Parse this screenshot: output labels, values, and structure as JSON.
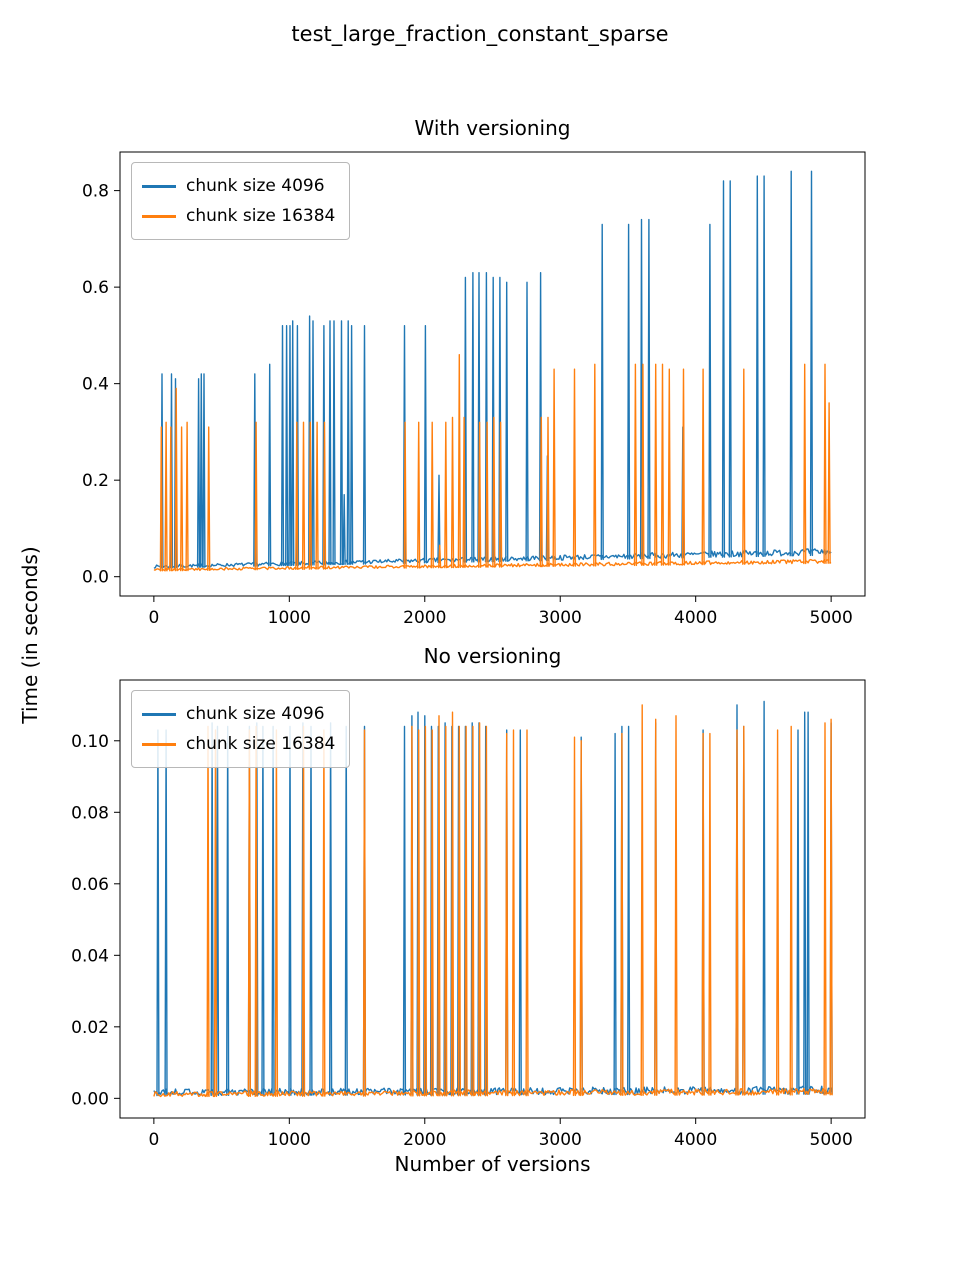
{
  "figure": {
    "title": "test_large_fraction_constant_sparse",
    "xlabel": "Number of versions",
    "ylabel": "Time (in seconds)"
  },
  "chart_data": [
    {
      "type": "line",
      "title": "With versioning",
      "xlim": [
        -250,
        5250
      ],
      "ylim": [
        -0.04,
        0.88
      ],
      "xticks": [
        0,
        1000,
        2000,
        3000,
        4000,
        5000
      ],
      "xtick_labels": [
        "0",
        "1000",
        "2000",
        "3000",
        "4000",
        "5000"
      ],
      "yticks": [
        0.0,
        0.2,
        0.4,
        0.6,
        0.8
      ],
      "ytick_labels": [
        "0.0",
        "0.2",
        "0.4",
        "0.6",
        "0.8"
      ],
      "legend_position": "upper left",
      "series": [
        {
          "name": "chunk size 4096",
          "color": "#1f77b4",
          "baseline": {
            "start": 0.018,
            "end": 0.045,
            "noise_start": 0.006,
            "noise_end": 0.014
          },
          "spikes": [
            [
              60,
              0.42
            ],
            [
              130,
              0.42
            ],
            [
              160,
              0.41
            ],
            [
              330,
              0.41
            ],
            [
              350,
              0.42
            ],
            [
              370,
              0.42
            ],
            [
              745,
              0.42
            ],
            [
              855,
              0.44
            ],
            [
              950,
              0.52
            ],
            [
              980,
              0.52
            ],
            [
              1005,
              0.52
            ],
            [
              1025,
              0.53
            ],
            [
              1060,
              0.52
            ],
            [
              1150,
              0.54
            ],
            [
              1175,
              0.53
            ],
            [
              1255,
              0.52
            ],
            [
              1300,
              0.53
            ],
            [
              1330,
              0.53
            ],
            [
              1385,
              0.53
            ],
            [
              1405,
              0.17
            ],
            [
              1435,
              0.53
            ],
            [
              1460,
              0.52
            ],
            [
              1555,
              0.52
            ],
            [
              1850,
              0.52
            ],
            [
              2005,
              0.52
            ],
            [
              2105,
              0.21
            ],
            [
              2300,
              0.62
            ],
            [
              2355,
              0.63
            ],
            [
              2400,
              0.63
            ],
            [
              2455,
              0.63
            ],
            [
              2505,
              0.62
            ],
            [
              2555,
              0.62
            ],
            [
              2605,
              0.61
            ],
            [
              2755,
              0.61
            ],
            [
              2855,
              0.63
            ],
            [
              2905,
              0.25
            ],
            [
              3310,
              0.73
            ],
            [
              3505,
              0.73
            ],
            [
              3600,
              0.74
            ],
            [
              3655,
              0.74
            ],
            [
              3905,
              0.31
            ],
            [
              4105,
              0.73
            ],
            [
              4205,
              0.82
            ],
            [
              4255,
              0.82
            ],
            [
              4455,
              0.83
            ],
            [
              4505,
              0.83
            ],
            [
              4705,
              0.84
            ],
            [
              4855,
              0.84
            ]
          ]
        },
        {
          "name": "chunk size 16384",
          "color": "#ff7f0e",
          "baseline": {
            "start": 0.012,
            "end": 0.028,
            "noise_start": 0.005,
            "noise_end": 0.008
          },
          "spikes": [
            [
              55,
              0.31
            ],
            [
              90,
              0.32
            ],
            [
              125,
              0.31
            ],
            [
              165,
              0.39
            ],
            [
              205,
              0.31
            ],
            [
              245,
              0.32
            ],
            [
              405,
              0.31
            ],
            [
              755,
              0.32
            ],
            [
              1055,
              0.32
            ],
            [
              1105,
              0.32
            ],
            [
              1155,
              0.32
            ],
            [
              1205,
              0.32
            ],
            [
              1260,
              0.32
            ],
            [
              1855,
              0.32
            ],
            [
              1955,
              0.32
            ],
            [
              2055,
              0.32
            ],
            [
              2110,
              0.065
            ],
            [
              2155,
              0.32
            ],
            [
              2205,
              0.33
            ],
            [
              2255,
              0.46
            ],
            [
              2290,
              0.33
            ],
            [
              2405,
              0.32
            ],
            [
              2460,
              0.32
            ],
            [
              2510,
              0.33
            ],
            [
              2560,
              0.32
            ],
            [
              2860,
              0.33
            ],
            [
              2910,
              0.33
            ],
            [
              2955,
              0.43
            ],
            [
              3105,
              0.43
            ],
            [
              3255,
              0.44
            ],
            [
              3555,
              0.44
            ],
            [
              3610,
              0.44
            ],
            [
              3705,
              0.44
            ],
            [
              3755,
              0.44
            ],
            [
              3805,
              0.43
            ],
            [
              3910,
              0.43
            ],
            [
              4055,
              0.43
            ],
            [
              4355,
              0.43
            ],
            [
              4805,
              0.44
            ],
            [
              4955,
              0.44
            ],
            [
              4985,
              0.36
            ]
          ]
        }
      ]
    },
    {
      "type": "line",
      "title": "No versioning",
      "xlim": [
        -250,
        5250
      ],
      "ylim": [
        -0.0055,
        0.117
      ],
      "xticks": [
        0,
        1000,
        2000,
        3000,
        4000,
        5000
      ],
      "xtick_labels": [
        "0",
        "1000",
        "2000",
        "3000",
        "4000",
        "5000"
      ],
      "yticks": [
        0.0,
        0.02,
        0.04,
        0.06,
        0.08,
        0.1
      ],
      "ytick_labels": [
        "0.00",
        "0.02",
        "0.04",
        "0.06",
        "0.08",
        "0.10"
      ],
      "legend_position": "upper left",
      "series": [
        {
          "name": "chunk size 4096",
          "color": "#1f77b4",
          "baseline": {
            "start": 0.0008,
            "end": 0.0012,
            "noise_start": 0.0018,
            "noise_end": 0.0022
          },
          "spikes": [
            [
              30,
              0.103
            ],
            [
              90,
              0.103
            ],
            [
              430,
              0.105
            ],
            [
              470,
              0.104
            ],
            [
              545,
              0.104
            ],
            [
              705,
              0.104
            ],
            [
              760,
              0.105
            ],
            [
              805,
              0.104
            ],
            [
              880,
              0.104
            ],
            [
              1005,
              0.104
            ],
            [
              1100,
              0.105
            ],
            [
              1160,
              0.104
            ],
            [
              1305,
              0.105
            ],
            [
              1420,
              0.104
            ],
            [
              1555,
              0.104
            ],
            [
              1850,
              0.104
            ],
            [
              1905,
              0.107
            ],
            [
              1950,
              0.108
            ],
            [
              2000,
              0.107
            ],
            [
              2050,
              0.104
            ],
            [
              2100,
              0.104
            ],
            [
              2150,
              0.105
            ],
            [
              2200,
              0.104
            ],
            [
              2250,
              0.104
            ],
            [
              2300,
              0.104
            ],
            [
              2350,
              0.105
            ],
            [
              2400,
              0.105
            ],
            [
              2450,
              0.104
            ],
            [
              2605,
              0.103
            ],
            [
              2705,
              0.103
            ],
            [
              3155,
              0.101
            ],
            [
              3405,
              0.102
            ],
            [
              3455,
              0.104
            ],
            [
              3505,
              0.104
            ],
            [
              3705,
              0.105
            ],
            [
              4055,
              0.103
            ],
            [
              4305,
              0.11
            ],
            [
              4355,
              0.104
            ],
            [
              4505,
              0.111
            ],
            [
              4755,
              0.103
            ],
            [
              4805,
              0.108
            ],
            [
              4830,
              0.108
            ],
            [
              5000,
              0.105
            ]
          ]
        },
        {
          "name": "chunk size 16384",
          "color": "#ff7f0e",
          "baseline": {
            "start": 0.0005,
            "end": 0.001,
            "noise_start": 0.0014,
            "noise_end": 0.0018
          },
          "spikes": [
            [
              400,
              0.104
            ],
            [
              455,
              0.103
            ],
            [
              705,
              0.103
            ],
            [
              755,
              0.104
            ],
            [
              905,
              0.103
            ],
            [
              1105,
              0.104
            ],
            [
              1255,
              0.103
            ],
            [
              1555,
              0.103
            ],
            [
              1905,
              0.104
            ],
            [
              1955,
              0.103
            ],
            [
              2005,
              0.104
            ],
            [
              2055,
              0.103
            ],
            [
              2105,
              0.107
            ],
            [
              2155,
              0.104
            ],
            [
              2205,
              0.108
            ],
            [
              2255,
              0.104
            ],
            [
              2305,
              0.104
            ],
            [
              2355,
              0.104
            ],
            [
              2405,
              0.105
            ],
            [
              2455,
              0.104
            ],
            [
              2605,
              0.102
            ],
            [
              2655,
              0.103
            ],
            [
              2755,
              0.103
            ],
            [
              3105,
              0.101
            ],
            [
              3155,
              0.1
            ],
            [
              3455,
              0.102
            ],
            [
              3605,
              0.11
            ],
            [
              3705,
              0.106
            ],
            [
              3855,
              0.107
            ],
            [
              4055,
              0.102
            ],
            [
              4105,
              0.102
            ],
            [
              4305,
              0.103
            ],
            [
              4355,
              0.104
            ],
            [
              4605,
              0.103
            ],
            [
              4705,
              0.104
            ],
            [
              4955,
              0.105
            ],
            [
              5000,
              0.106
            ]
          ]
        }
      ]
    }
  ]
}
